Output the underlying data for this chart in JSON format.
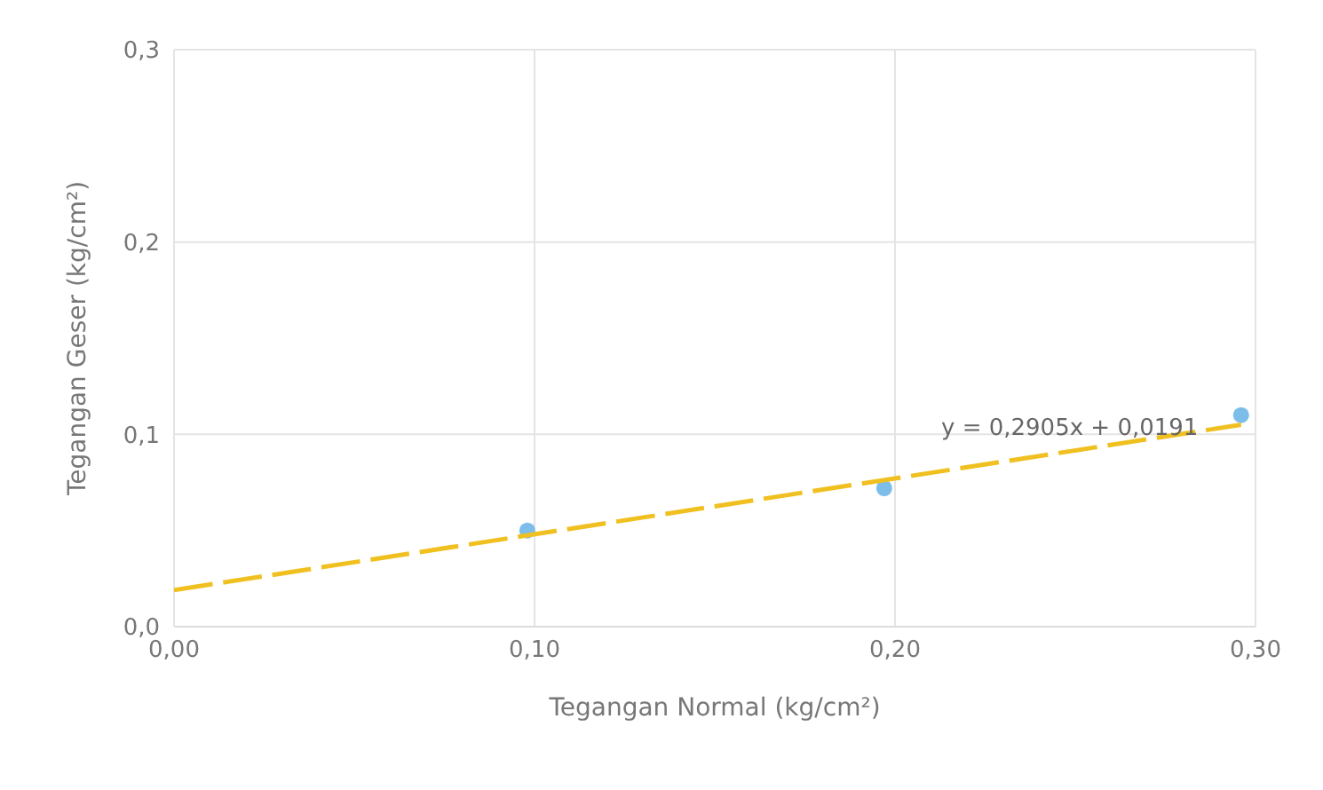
{
  "chart_data": {
    "type": "scatter",
    "xlabel": "Tegangan Normal (kg/cm²)",
    "ylabel": "Tegangan Geser (kg/cm²)",
    "xlim": [
      0,
      0.3
    ],
    "ylim": [
      0,
      0.3
    ],
    "xticks": [
      {
        "value": 0,
        "label": "0,00"
      },
      {
        "value": 0.1,
        "label": "0,10"
      },
      {
        "value": 0.2,
        "label": "0,20"
      },
      {
        "value": 0.3,
        "label": "0,30"
      }
    ],
    "yticks": [
      {
        "value": 0,
        "label": "0,0"
      },
      {
        "value": 0.1,
        "label": "0,1"
      },
      {
        "value": 0.2,
        "label": "0,2"
      },
      {
        "value": 0.3,
        "label": "0,3"
      }
    ],
    "grid": true,
    "legend": false,
    "series": [
      {
        "color": "#7cbdea",
        "marker": "circle",
        "x": [
          0.098,
          0.197,
          0.296
        ],
        "values": [
          0.05,
          0.072,
          0.11
        ]
      },
      {
        "type": "line",
        "color": "#f0c020",
        "line_style": "dashed",
        "marker": "none",
        "x": [
          0,
          0.296
        ],
        "values": [
          0.019,
          0.105
        ]
      }
    ],
    "annotations": [
      "y = 0,2905x + 0,0191"
    ]
  }
}
